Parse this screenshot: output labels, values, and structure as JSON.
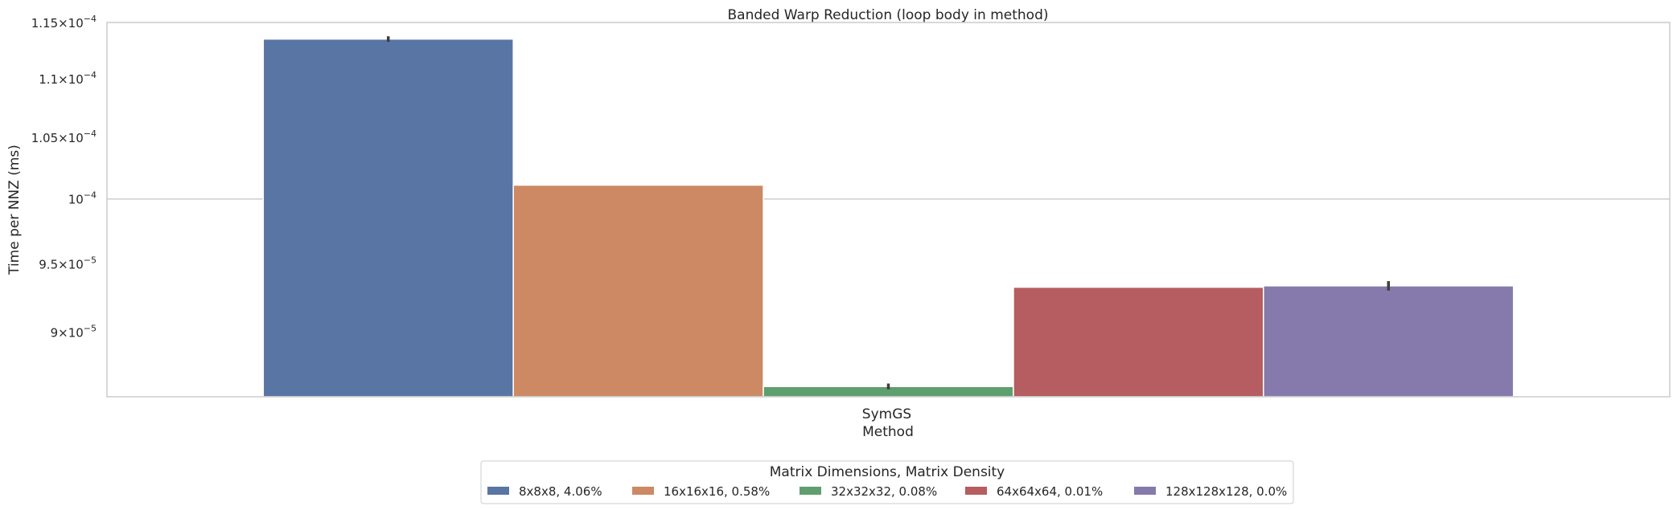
{
  "chart_data": {
    "type": "bar",
    "title": "Banded Warp Reduction (loop body in method)",
    "xlabel": "Method",
    "ylabel": "Time per NNZ (ms)",
    "categories": [
      "SymGS"
    ],
    "yscale": "log",
    "ylim": [
      8.55e-05,
      0.000115
    ],
    "yticks": [
      {
        "value": 9e-05,
        "mant": "9",
        "exp": "-5"
      },
      {
        "value": 9.5e-05,
        "mant": "9.5",
        "exp": "-5"
      },
      {
        "value": 0.0001,
        "mant": "10",
        "exp": "-4",
        "no_mult": true
      },
      {
        "value": 0.000105,
        "mant": "1.05",
        "exp": "-4"
      },
      {
        "value": 0.00011,
        "mant": "1.1",
        "exp": "-4"
      },
      {
        "value": 0.000115,
        "mant": "1.15",
        "exp": "-4"
      }
    ],
    "grid": "y-major",
    "legend": {
      "title": "Matrix Dimensions, Matrix Density",
      "placement": "bottom-center"
    },
    "series": [
      {
        "name": "8x8x8, 4.06%",
        "values": [
          0.0001135
        ],
        "err": [
          2.5e-07
        ],
        "color": "#5975a4"
      },
      {
        "name": "16x16x16, 0.58%",
        "values": [
          0.0001011
        ],
        "err": [
          0
        ],
        "color": "#cc8963"
      },
      {
        "name": "32x32x32, 0.08%",
        "values": [
          8.62e-05
        ],
        "err": [
          2e-07
        ],
        "color": "#5f9e6e"
      },
      {
        "name": "64x64x64, 0.01%",
        "values": [
          9.325e-05
        ],
        "err": [
          0
        ],
        "color": "#b55d60"
      },
      {
        "name": "128x128x128, 0.0%",
        "values": [
          9.335e-05
        ],
        "err": [
          3.5e-07
        ],
        "color": "#857aab"
      }
    ]
  }
}
